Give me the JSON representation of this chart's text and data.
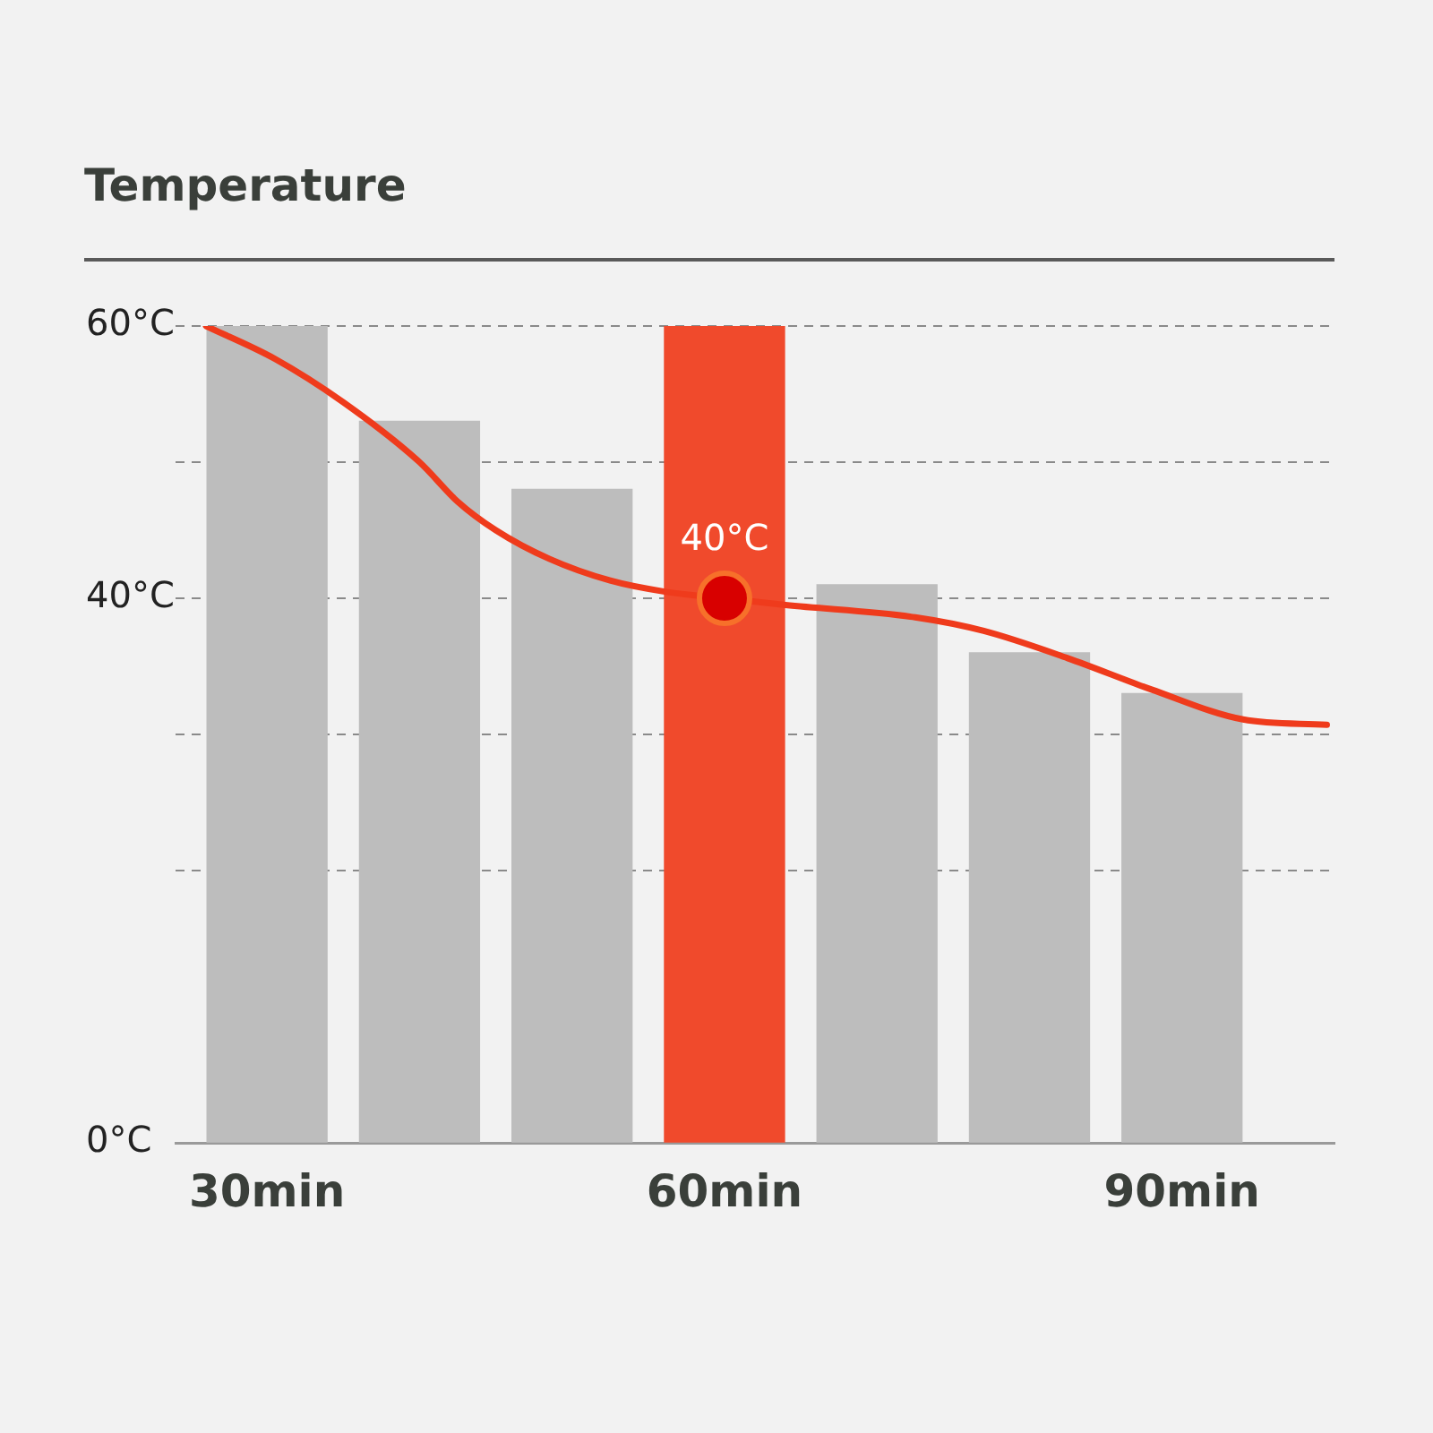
{
  "chart_data": {
    "type": "bar",
    "title": "Temperature",
    "xlim": [
      24,
      100
    ],
    "xticks": [
      {
        "value": 30,
        "label": "30min"
      },
      {
        "value": 60,
        "label": "60min"
      },
      {
        "value": 90,
        "label": "90min"
      }
    ],
    "ylim": [
      0,
      60
    ],
    "yticks": [
      {
        "value": 0,
        "label": "0°C"
      },
      {
        "value": 20,
        "label": null
      },
      {
        "value": 30,
        "label": null
      },
      {
        "value": 40,
        "label": "40°C"
      },
      {
        "value": 50,
        "label": null
      },
      {
        "value": 60,
        "label": "60°C"
      }
    ],
    "grid": "y",
    "series": [
      {
        "x": [
          30,
          40,
          50,
          60,
          70,
          80,
          90
        ],
        "values": [
          60,
          53,
          48,
          60,
          41,
          36,
          33
        ],
        "colors": [
          "#bdbdbd",
          "#bdbdbd",
          "#bdbdbd",
          "#f04a2c",
          "#bdbdbd",
          "#bdbdbd",
          "#bdbdbd"
        ]
      },
      {
        "type": "line",
        "color": "#ef3b1c",
        "marker": "none",
        "x": [
          26,
          30.5,
          35,
          40,
          42.5,
          45,
          48.5,
          52.5,
          56,
          60,
          64,
          72.5,
          77,
          82.5,
          88,
          94,
          99.5
        ],
        "values": [
          60,
          57.6,
          54.4,
          50,
          47.1,
          45,
          42.9,
          41.3,
          40.5,
          40,
          39.5,
          38.6,
          37.6,
          35.6,
          33.3,
          31.1,
          30.7
        ]
      },
      {
        "type": "scatter",
        "color": "#d80000",
        "marker": "circle",
        "x": [
          60
        ],
        "values": [
          40
        ],
        "value_labels": [
          "40°C"
        ]
      }
    ]
  }
}
